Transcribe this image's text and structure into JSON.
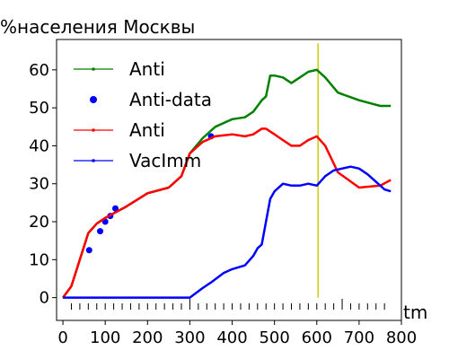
{
  "chart_data": {
    "type": "line",
    "title": "",
    "ylabel": "%населения Москвы",
    "xlabel": "tm",
    "xlim": [
      -15,
      800
    ],
    "ylim": [
      -6,
      68
    ],
    "xticks": [
      0,
      100,
      200,
      300,
      400,
      500,
      600,
      700,
      800
    ],
    "yticks": [
      0,
      10,
      20,
      30,
      40,
      50,
      60
    ],
    "legend": {
      "placement": "top-left"
    },
    "series": [
      {
        "name": "Anti",
        "color": "#008000",
        "marker": "small-dot-line",
        "x": [
          0,
          20,
          40,
          60,
          80,
          100,
          150,
          200,
          250,
          280,
          300,
          330,
          360,
          400,
          430,
          450,
          470,
          480,
          490,
          500,
          520,
          540,
          560,
          580,
          600,
          620,
          650,
          700,
          750,
          775
        ],
        "y": [
          0,
          3,
          10,
          17,
          19.5,
          21,
          24,
          27.5,
          29,
          32,
          38,
          42,
          45,
          47,
          47.5,
          49,
          52,
          53,
          58.5,
          58.5,
          58,
          56.5,
          58,
          59.5,
          60,
          58,
          54,
          52,
          50.5,
          50.5
        ]
      },
      {
        "name": "Anti-data",
        "color": "#0000ff",
        "marker": "dot",
        "x": [
          62,
          88,
          100,
          112,
          124,
          350
        ],
        "y": [
          12.5,
          17.5,
          20,
          21.5,
          23.5,
          42.5
        ]
      },
      {
        "name": "Anti",
        "color": "#ff0000",
        "marker": "small-dot-line",
        "x": [
          0,
          20,
          40,
          60,
          80,
          100,
          150,
          200,
          250,
          280,
          300,
          330,
          360,
          400,
          430,
          450,
          470,
          480,
          500,
          520,
          540,
          560,
          580,
          600,
          620,
          650,
          700,
          750,
          775
        ],
        "y": [
          0,
          3,
          10,
          17,
          19.5,
          21,
          24,
          27.5,
          29,
          32,
          38,
          41,
          42.5,
          43,
          42.5,
          43,
          44.5,
          44.5,
          43,
          41.5,
          40,
          40,
          41.5,
          42.5,
          40,
          33,
          29,
          29.5,
          31
        ]
      },
      {
        "name": "VacImm",
        "color": "#0000ff",
        "marker": "small-dot-line",
        "x": [
          0,
          300,
          330,
          350,
          380,
          400,
          430,
          450,
          460,
          470,
          480,
          490,
          500,
          520,
          540,
          560,
          580,
          600,
          620,
          640,
          660,
          680,
          700,
          720,
          740,
          760,
          775
        ],
        "y": [
          0,
          0,
          2.5,
          4,
          6.5,
          7.5,
          8.5,
          11,
          13,
          14,
          20,
          26,
          28,
          30,
          29.5,
          29.5,
          30,
          29.5,
          32,
          33.5,
          34,
          34.5,
          34,
          32.5,
          30.5,
          28.5,
          28
        ]
      }
    ],
    "annotations": [
      {
        "type": "vertical-line",
        "color": "#cccc00",
        "x": 603,
        "y": [
          0,
          67
        ]
      }
    ],
    "rug_marks": [
      20,
      40,
      60,
      80,
      100,
      120,
      140,
      160,
      180,
      200,
      220,
      240,
      260,
      280,
      300,
      320,
      340,
      360,
      380,
      400,
      420,
      440,
      460,
      480,
      500,
      520,
      540,
      560,
      580,
      600,
      620,
      640,
      660,
      680,
      700,
      720,
      740,
      760
    ],
    "rug_marks_long": [
      300,
      660
    ]
  }
}
